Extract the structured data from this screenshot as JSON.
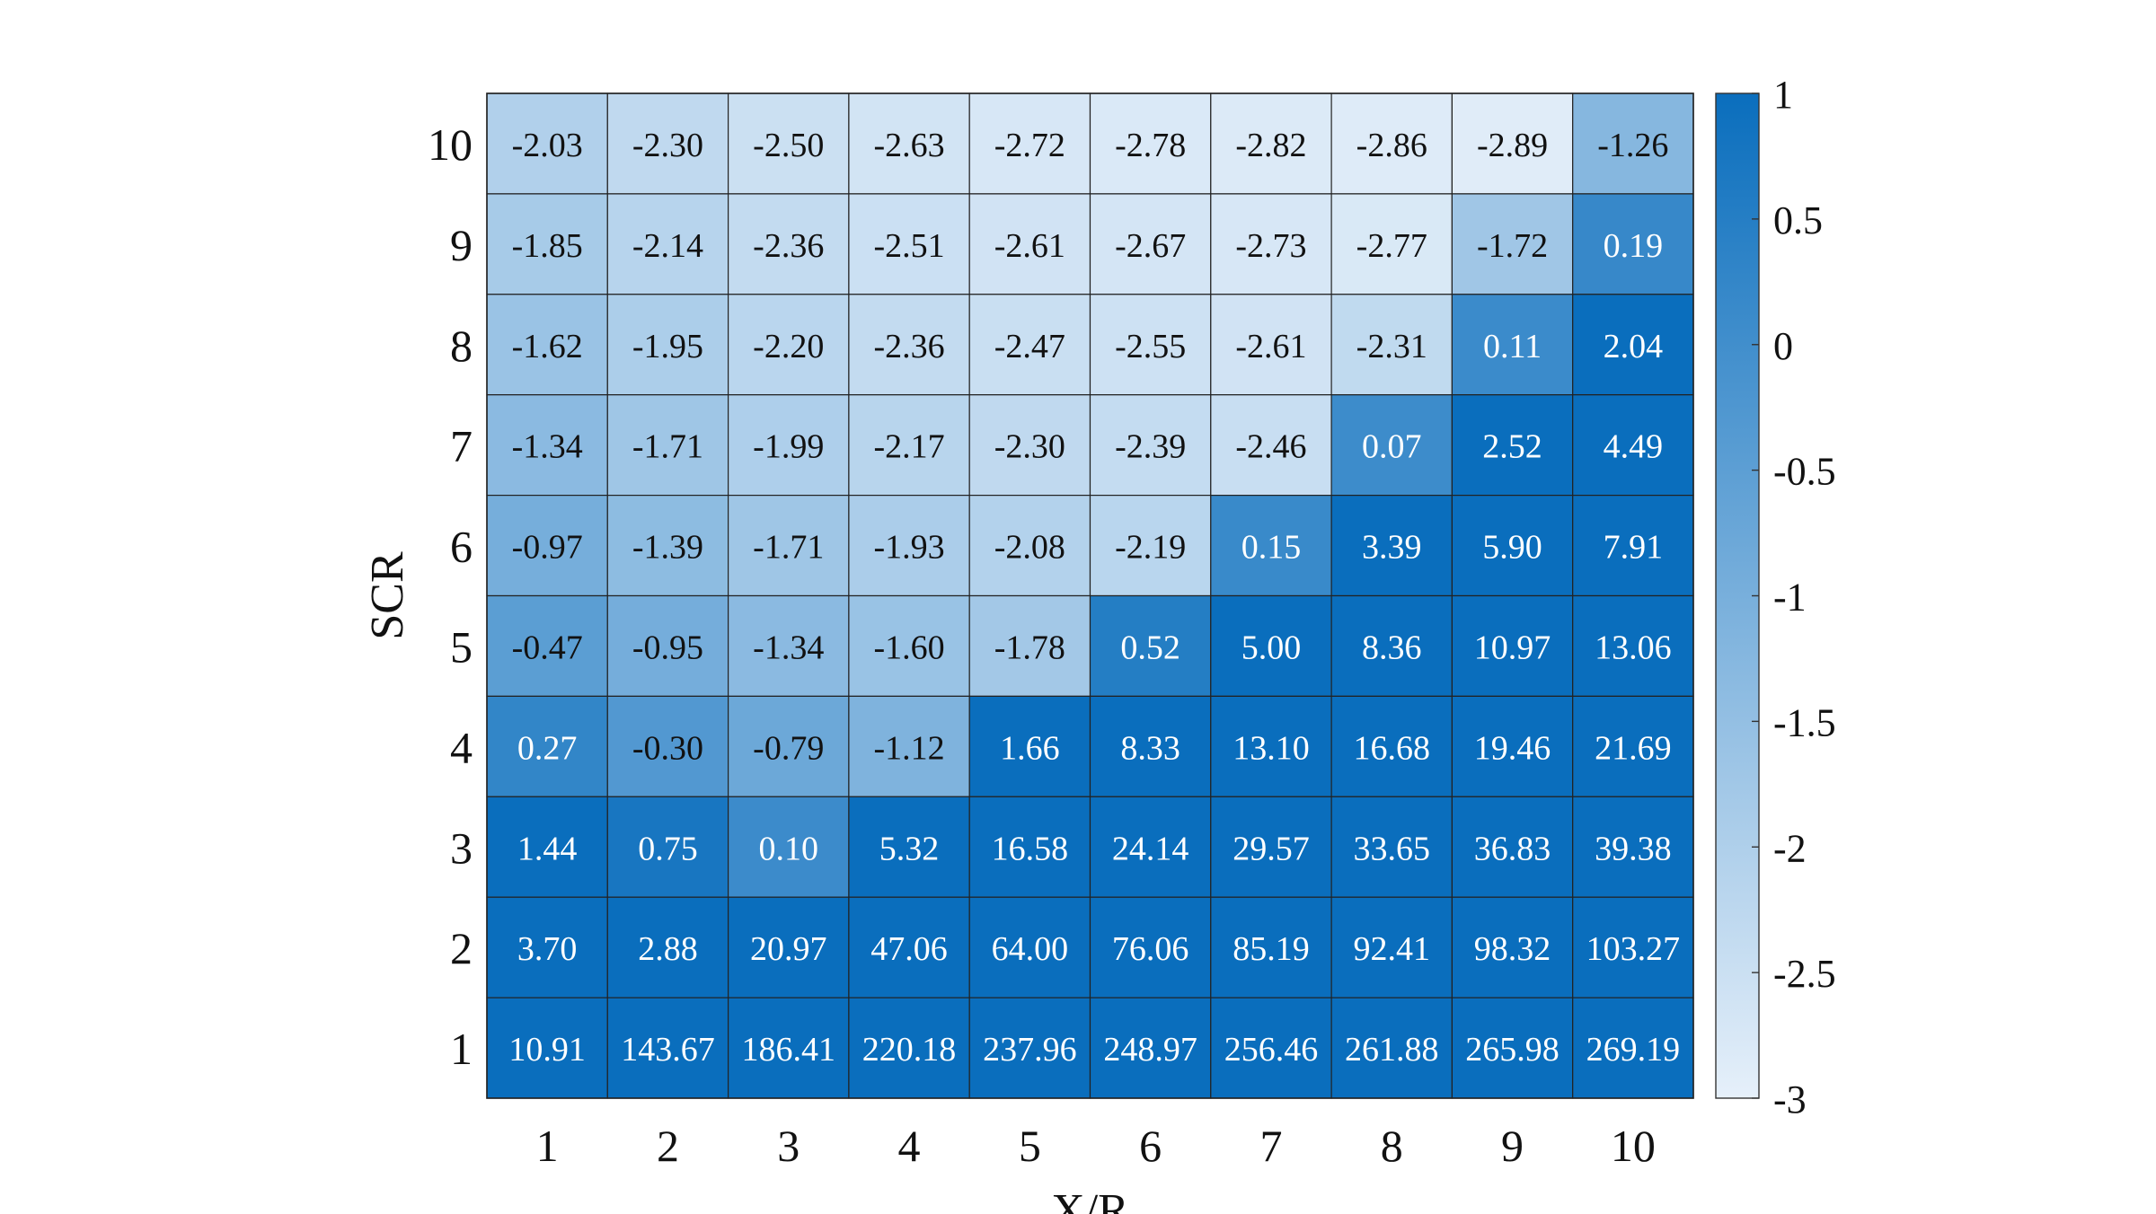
{
  "chart_data": {
    "type": "heatmap",
    "title": "",
    "xlabel": "X/R",
    "ylabel": "SCR",
    "x_categories": [
      "1",
      "2",
      "3",
      "4",
      "5",
      "6",
      "7",
      "8",
      "9",
      "10"
    ],
    "y_categories": [
      "10",
      "9",
      "8",
      "7",
      "6",
      "5",
      "4",
      "3",
      "2",
      "1"
    ],
    "cells": [
      [
        "-2.03",
        "-2.30",
        "-2.50",
        "-2.63",
        "-2.72",
        "-2.78",
        "-2.82",
        "-2.86",
        "-2.89",
        "-1.26"
      ],
      [
        "-1.85",
        "-2.14",
        "-2.36",
        "-2.51",
        "-2.61",
        "-2.67",
        "-2.73",
        "-2.77",
        "-1.72",
        "0.19"
      ],
      [
        "-1.62",
        "-1.95",
        "-2.20",
        "-2.36",
        "-2.47",
        "-2.55",
        "-2.61",
        "-2.31",
        "0.11",
        "2.04"
      ],
      [
        "-1.34",
        "-1.71",
        "-1.99",
        "-2.17",
        "-2.30",
        "-2.39",
        "-2.46",
        "0.07",
        "2.52",
        "4.49"
      ],
      [
        "-0.97",
        "-1.39",
        "-1.71",
        "-1.93",
        "-2.08",
        "-2.19",
        "0.15",
        "3.39",
        "5.90",
        "7.91"
      ],
      [
        "-0.47",
        "-0.95",
        "-1.34",
        "-1.60",
        "-1.78",
        "0.52",
        "5.00",
        "8.36",
        "10.97",
        "13.06"
      ],
      [
        "0.27",
        "-0.30",
        "-0.79",
        "-1.12",
        "1.66",
        "8.33",
        "13.10",
        "16.68",
        "19.46",
        "21.69"
      ],
      [
        "1.44",
        "0.75",
        "0.10",
        "5.32",
        "16.58",
        "24.14",
        "29.57",
        "33.65",
        "36.83",
        "39.38"
      ],
      [
        "3.70",
        "2.88",
        "20.97",
        "47.06",
        "64.00",
        "76.06",
        "85.19",
        "92.41",
        "98.32",
        "103.27"
      ],
      [
        "10.91",
        "143.67",
        "186.41",
        "220.18",
        "237.96",
        "248.97",
        "256.46",
        "261.88",
        "265.98",
        "269.19"
      ]
    ],
    "colorbar": {
      "range": [
        -3,
        1
      ],
      "ticks": [
        "1",
        "0.5",
        "0",
        "-0.5",
        "-1",
        "-1.5",
        "-2",
        "-2.5",
        "-3"
      ],
      "color_low": "#e6f0fa",
      "color_high": "#0a6ebd"
    },
    "text_color_dark": "#111111",
    "text_color_light": "#ffffff",
    "grid": true,
    "legend": "colorbar-right"
  }
}
